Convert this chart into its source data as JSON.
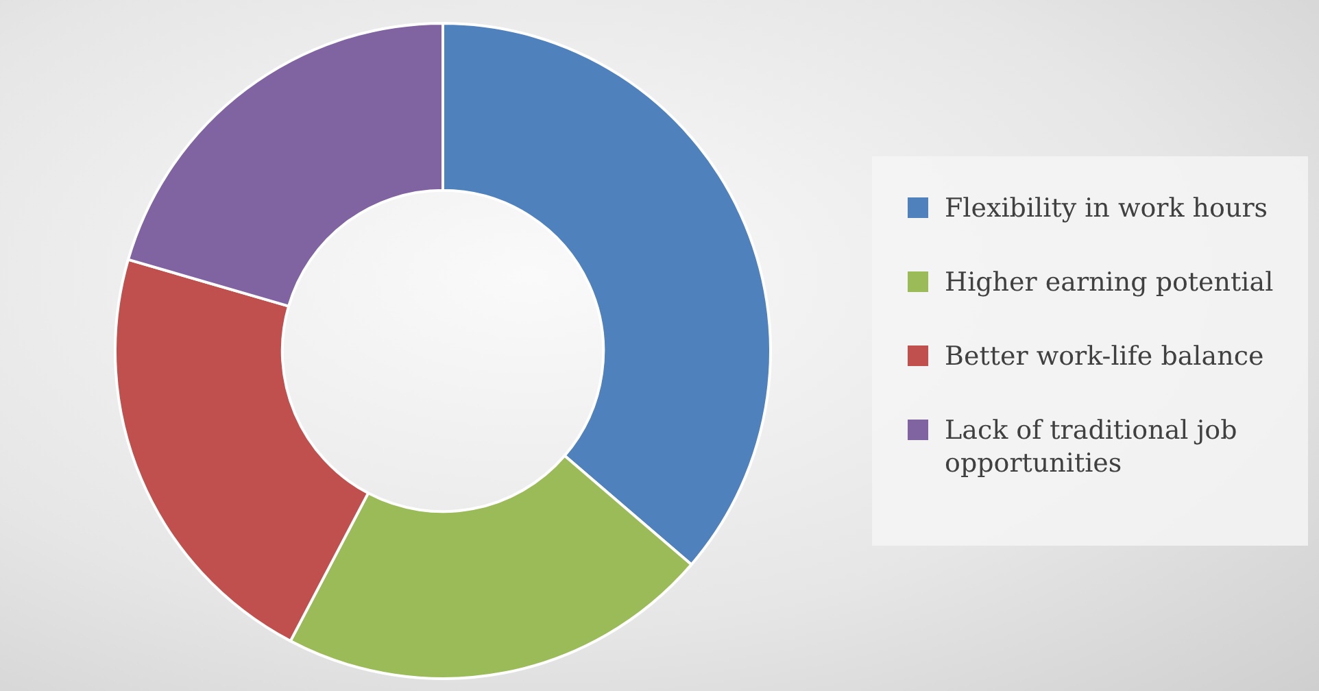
{
  "chart_data": {
    "type": "donut",
    "categories": [
      "Flexibility in work hours",
      "Higher earning potential",
      "Better work-life balance",
      "Lack of traditional job opportunities"
    ],
    "values": [
      36.3,
      21.4,
      21.8,
      20.5
    ],
    "colors": [
      "#4f81bd",
      "#9bbb59",
      "#c0504d",
      "#8064a2"
    ],
    "legend": "right"
  }
}
